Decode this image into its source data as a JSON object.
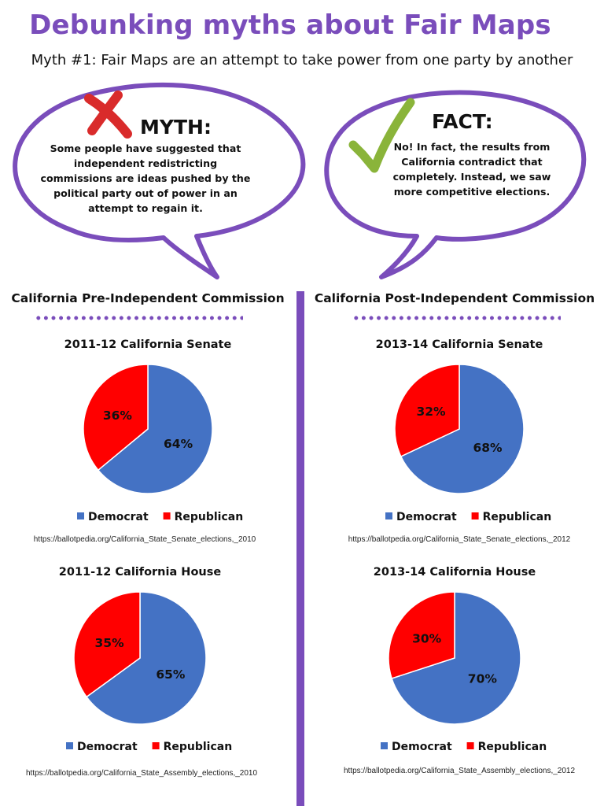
{
  "header": {
    "title": "Debunking myths about Fair Maps",
    "subtitle": "Myth #1: Fair Maps are an attempt to take power from one party by another"
  },
  "myth": {
    "heading": "MYTH:",
    "text": "Some people have suggested that independent redistricting commissions are ideas pushed by the political party out of power in an attempt to regain it."
  },
  "fact": {
    "heading": "FACT:",
    "text": "No! In fact, the results from California contradict that completely. Instead, we saw more competitive elections."
  },
  "columns": {
    "left_title": "California Pre-Independent Commission",
    "right_title": "California Post-Independent Commission"
  },
  "colors": {
    "accent": "#7a4dbb",
    "democrat": "#4472c4",
    "republican": "#ff0000",
    "x_mark": "#d92b2b",
    "check_mark": "#8ab43a"
  },
  "chart_data": [
    {
      "type": "pie",
      "title": "2011-12 California Senate",
      "categories": [
        "Democrat",
        "Republican"
      ],
      "values": [
        64,
        36
      ],
      "labels": [
        "64%",
        "36%"
      ],
      "colors": [
        "#4472c4",
        "#ff0000"
      ],
      "legend": "bottom",
      "source": "https://ballotpedia.org/California_State_Senate_elections,_2010"
    },
    {
      "type": "pie",
      "title": "2013-14 California Senate",
      "categories": [
        "Democrat",
        "Republican"
      ],
      "values": [
        68,
        32
      ],
      "labels": [
        "68%",
        "32%"
      ],
      "colors": [
        "#4472c4",
        "#ff0000"
      ],
      "legend": "bottom",
      "source": "https://ballotpedia.org/California_State_Senate_elections,_2012"
    },
    {
      "type": "pie",
      "title": "2011-12 California House",
      "categories": [
        "Democrat",
        "Republican"
      ],
      "values": [
        65,
        35
      ],
      "labels": [
        "65%",
        "35%"
      ],
      "colors": [
        "#4472c4",
        "#ff0000"
      ],
      "legend": "bottom",
      "source": "https://ballotpedia.org/California_State_Assembly_elections,_2010"
    },
    {
      "type": "pie",
      "title": "2013-14 California House",
      "categories": [
        "Democrat",
        "Republican"
      ],
      "values": [
        70,
        30
      ],
      "labels": [
        "70%",
        "30%"
      ],
      "colors": [
        "#4472c4",
        "#ff0000"
      ],
      "legend": "bottom",
      "source": "https://ballotpedia.org/California_State_Assembly_elections,_2012"
    }
  ]
}
